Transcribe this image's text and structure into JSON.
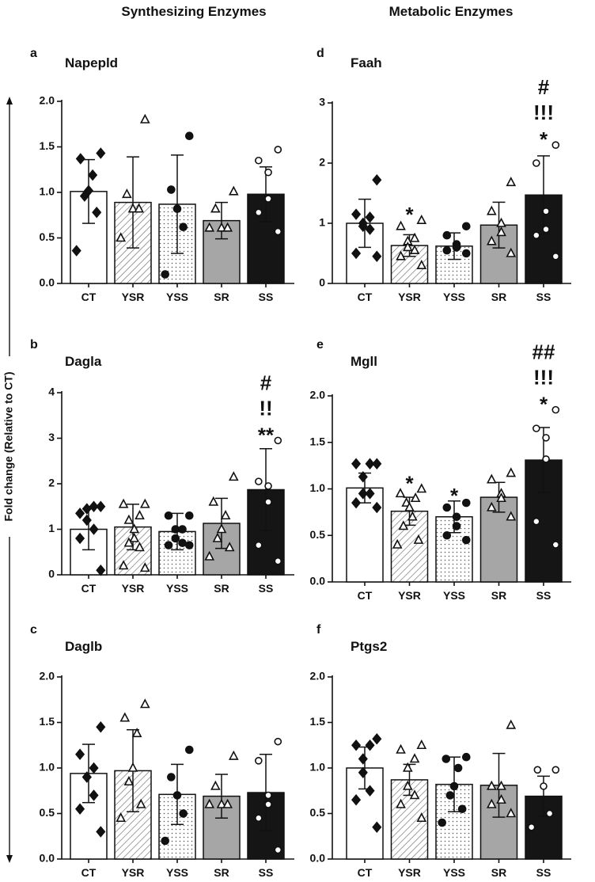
{
  "column_titles": [
    "Synthesizing  Enzymes",
    "Metabolic Enzymes"
  ],
  "ylabel": "Fold change (Relative to CT)",
  "chart_data": [
    {
      "type": "bar",
      "label": "a",
      "title": "Napepld",
      "categories": [
        "CT",
        "YSR",
        "YSS",
        "SR",
        "SS"
      ],
      "values": [
        1.01,
        0.89,
        0.87,
        0.69,
        0.98
      ],
      "errors": [
        0.35,
        0.5,
        0.54,
        0.2,
        0.3
      ],
      "points": [
        [
          1.43,
          1.37,
          1.19,
          1.02,
          0.96,
          0.78,
          0.36
        ],
        [
          1.8,
          0.98,
          0.82,
          0.82,
          0.5
        ],
        [
          1.62,
          1.03,
          0.82,
          0.62,
          0.1
        ],
        [
          1.01,
          0.82,
          0.61,
          0.61,
          0.61
        ],
        [
          1.47,
          1.35,
          1.22,
          0.93,
          0.78,
          0.57
        ]
      ],
      "annotations": [
        [],
        [],
        [],
        [],
        []
      ],
      "colors": [
        "#ffffff",
        "#ffffff",
        "#ffffff",
        "#a6a6a6",
        "#151515"
      ],
      "patterns": [
        null,
        "hatch",
        "dots",
        null,
        null
      ],
      "markers": [
        "diamond",
        "triangle",
        "circle",
        "triangle",
        "open-circle"
      ],
      "ylim": [
        0,
        2
      ],
      "yticks": [
        {
          "value": 0,
          "label": "0.0"
        },
        0.5,
        {
          "value": 1,
          "label": "1.0"
        },
        1.5,
        {
          "value": 2,
          "label": "2.0"
        }
      ]
    },
    {
      "type": "bar",
      "label": "b",
      "title": "Dagla",
      "categories": [
        "CT",
        "YSR",
        "YSS",
        "SR",
        "SS"
      ],
      "values": [
        1.0,
        1.05,
        0.95,
        1.13,
        1.87
      ],
      "errors": [
        0.45,
        0.5,
        0.4,
        0.55,
        0.9
      ],
      "points": [
        [
          1.5,
          1.35,
          1.5,
          1.45,
          1.2,
          1.0,
          0.8,
          0.1
        ],
        [
          1.55,
          1.55,
          1.3,
          1.2,
          1.0,
          0.8,
          0.7,
          0.6,
          0.2,
          0.15
        ],
        [
          1.3,
          1.3,
          1.0,
          1.0,
          0.8,
          0.7,
          0.65,
          0.65
        ],
        [
          2.15,
          1.6,
          1.3,
          1.0,
          0.8,
          0.6,
          0.4
        ],
        [
          2.95,
          2.05,
          1.95,
          1.6,
          0.65,
          0.3
        ]
      ],
      "annotations": [
        [],
        [],
        [],
        [],
        [
          "#",
          "!!",
          "**"
        ]
      ],
      "colors": [
        "#ffffff",
        "#ffffff",
        "#ffffff",
        "#a6a6a6",
        "#151515"
      ],
      "patterns": [
        null,
        "hatch",
        "dots",
        null,
        null
      ],
      "markers": [
        "diamond",
        "triangle",
        "circle",
        "triangle",
        "open-circle"
      ],
      "ylim": [
        0,
        4
      ],
      "yticks": [
        0,
        1,
        2,
        3,
        4
      ]
    },
    {
      "type": "bar",
      "label": "c",
      "title": "Daglb",
      "categories": [
        "CT",
        "YSR",
        "YSS",
        "SR",
        "SS"
      ],
      "values": [
        0.94,
        0.97,
        0.71,
        0.69,
        0.73
      ],
      "errors": [
        0.32,
        0.45,
        0.33,
        0.24,
        0.42
      ],
      "points": [
        [
          1.45,
          1.15,
          1.0,
          0.9,
          0.9,
          0.7,
          0.55,
          0.3
        ],
        [
          1.7,
          1.55,
          1.38,
          1.0,
          0.85,
          0.6,
          0.45
        ],
        [
          1.2,
          0.9,
          0.7,
          0.5,
          0.2
        ],
        [
          1.13,
          0.8,
          0.6,
          0.6,
          0.6
        ],
        [
          1.29,
          1.08,
          0.7,
          0.6,
          0.45,
          0.1
        ]
      ],
      "annotations": [
        [],
        [],
        [],
        [],
        []
      ],
      "colors": [
        "#ffffff",
        "#ffffff",
        "#ffffff",
        "#a6a6a6",
        "#151515"
      ],
      "patterns": [
        null,
        "hatch",
        "dots",
        null,
        null
      ],
      "markers": [
        "diamond",
        "triangle",
        "circle",
        "triangle",
        "open-circle"
      ],
      "ylim": [
        0,
        2
      ],
      "yticks": [
        {
          "value": 0,
          "label": "0.0"
        },
        0.5,
        {
          "value": 1,
          "label": "1.0"
        },
        1.5,
        {
          "value": 2,
          "label": "2.0"
        }
      ]
    },
    {
      "type": "bar",
      "label": "d",
      "title": "Faah",
      "categories": [
        "CT",
        "YSR",
        "YSS",
        "SR",
        "SS"
      ],
      "values": [
        1.0,
        0.63,
        0.62,
        0.97,
        1.47
      ],
      "errors": [
        0.4,
        0.18,
        0.22,
        0.38,
        0.65
      ],
      "points": [
        [
          1.72,
          1.15,
          1.1,
          1.0,
          0.95,
          0.9,
          0.5,
          0.45
        ],
        [
          1.05,
          0.95,
          0.75,
          0.7,
          0.6,
          0.55,
          0.45,
          0.3
        ],
        [
          0.95,
          0.8,
          0.65,
          0.6,
          0.55,
          0.5
        ],
        [
          1.68,
          1.2,
          1.0,
          0.85,
          0.7,
          0.5
        ],
        [
          2.3,
          2.0,
          1.2,
          0.9,
          0.8,
          0.45
        ]
      ],
      "annotations": [
        [],
        [
          "*"
        ],
        [],
        [],
        [
          "#",
          "!!!",
          "*"
        ]
      ],
      "colors": [
        "#ffffff",
        "#ffffff",
        "#ffffff",
        "#a6a6a6",
        "#151515"
      ],
      "patterns": [
        null,
        "hatch",
        "dots",
        null,
        null
      ],
      "markers": [
        "diamond",
        "triangle",
        "circle",
        "triangle",
        "open-circle"
      ],
      "ylim": [
        0,
        3
      ],
      "yticks": [
        0,
        1,
        2,
        3
      ]
    },
    {
      "type": "bar",
      "label": "e",
      "title": "Mgll",
      "categories": [
        "CT",
        "YSR",
        "YSS",
        "SR",
        "SS"
      ],
      "values": [
        1.01,
        0.76,
        0.7,
        0.91,
        1.31
      ],
      "errors": [
        0.16,
        0.15,
        0.17,
        0.16,
        0.35
      ],
      "points": [
        [
          1.27,
          1.27,
          1.27,
          1.13,
          0.95,
          0.95,
          0.85,
          0.8
        ],
        [
          1.0,
          0.95,
          0.9,
          0.85,
          0.8,
          0.7,
          0.6,
          0.45,
          0.4
        ],
        [
          0.85,
          0.8,
          0.7,
          0.6,
          0.5,
          0.45
        ],
        [
          1.17,
          1.1,
          0.95,
          0.9,
          0.8,
          0.7
        ],
        [
          1.85,
          1.65,
          1.55,
          1.32,
          0.65,
          0.4
        ]
      ],
      "annotations": [
        [],
        [
          "*"
        ],
        [
          "*"
        ],
        [],
        [
          "##",
          "!!!",
          "*"
        ]
      ],
      "colors": [
        "#ffffff",
        "#ffffff",
        "#ffffff",
        "#a6a6a6",
        "#151515"
      ],
      "patterns": [
        null,
        "hatch",
        "dots",
        null,
        null
      ],
      "markers": [
        "diamond",
        "triangle",
        "circle",
        "triangle",
        "open-circle"
      ],
      "ylim": [
        0,
        2
      ],
      "yticks": [
        {
          "value": 0,
          "label": "0.0"
        },
        0.5,
        {
          "value": 1,
          "label": "1.0"
        },
        1.5,
        {
          "value": 2,
          "label": "2.0"
        }
      ]
    },
    {
      "type": "bar",
      "label": "f",
      "title": "Ptgs2",
      "categories": [
        "CT",
        "YSR",
        "YSS",
        "SR",
        "SS"
      ],
      "values": [
        1.0,
        0.87,
        0.82,
        0.81,
        0.69
      ],
      "errors": [
        0.23,
        0.17,
        0.3,
        0.35,
        0.22
      ],
      "points": [
        [
          1.32,
          1.25,
          1.25,
          1.1,
          0.95,
          0.75,
          0.65,
          0.35
        ],
        [
          1.25,
          1.2,
          1.1,
          1.0,
          0.8,
          0.7,
          0.6,
          0.45
        ],
        [
          1.12,
          1.1,
          1.0,
          0.8,
          0.7,
          0.55,
          0.4
        ],
        [
          1.47,
          0.8,
          0.8,
          0.65,
          0.6,
          0.5
        ],
        [
          0.98,
          0.98,
          0.8,
          0.5,
          0.35
        ]
      ],
      "annotations": [
        [],
        [],
        [],
        [],
        []
      ],
      "colors": [
        "#ffffff",
        "#ffffff",
        "#ffffff",
        "#a6a6a6",
        "#151515"
      ],
      "patterns": [
        null,
        "hatch",
        "dots",
        null,
        null
      ],
      "markers": [
        "diamond",
        "triangle",
        "circle",
        "triangle",
        "open-circle"
      ],
      "ylim": [
        0,
        2
      ],
      "yticks": [
        {
          "value": 0,
          "label": "0.0"
        },
        0.5,
        {
          "value": 1,
          "label": "1.0"
        },
        1.5,
        {
          "value": 2,
          "label": "2.0"
        }
      ]
    }
  ]
}
